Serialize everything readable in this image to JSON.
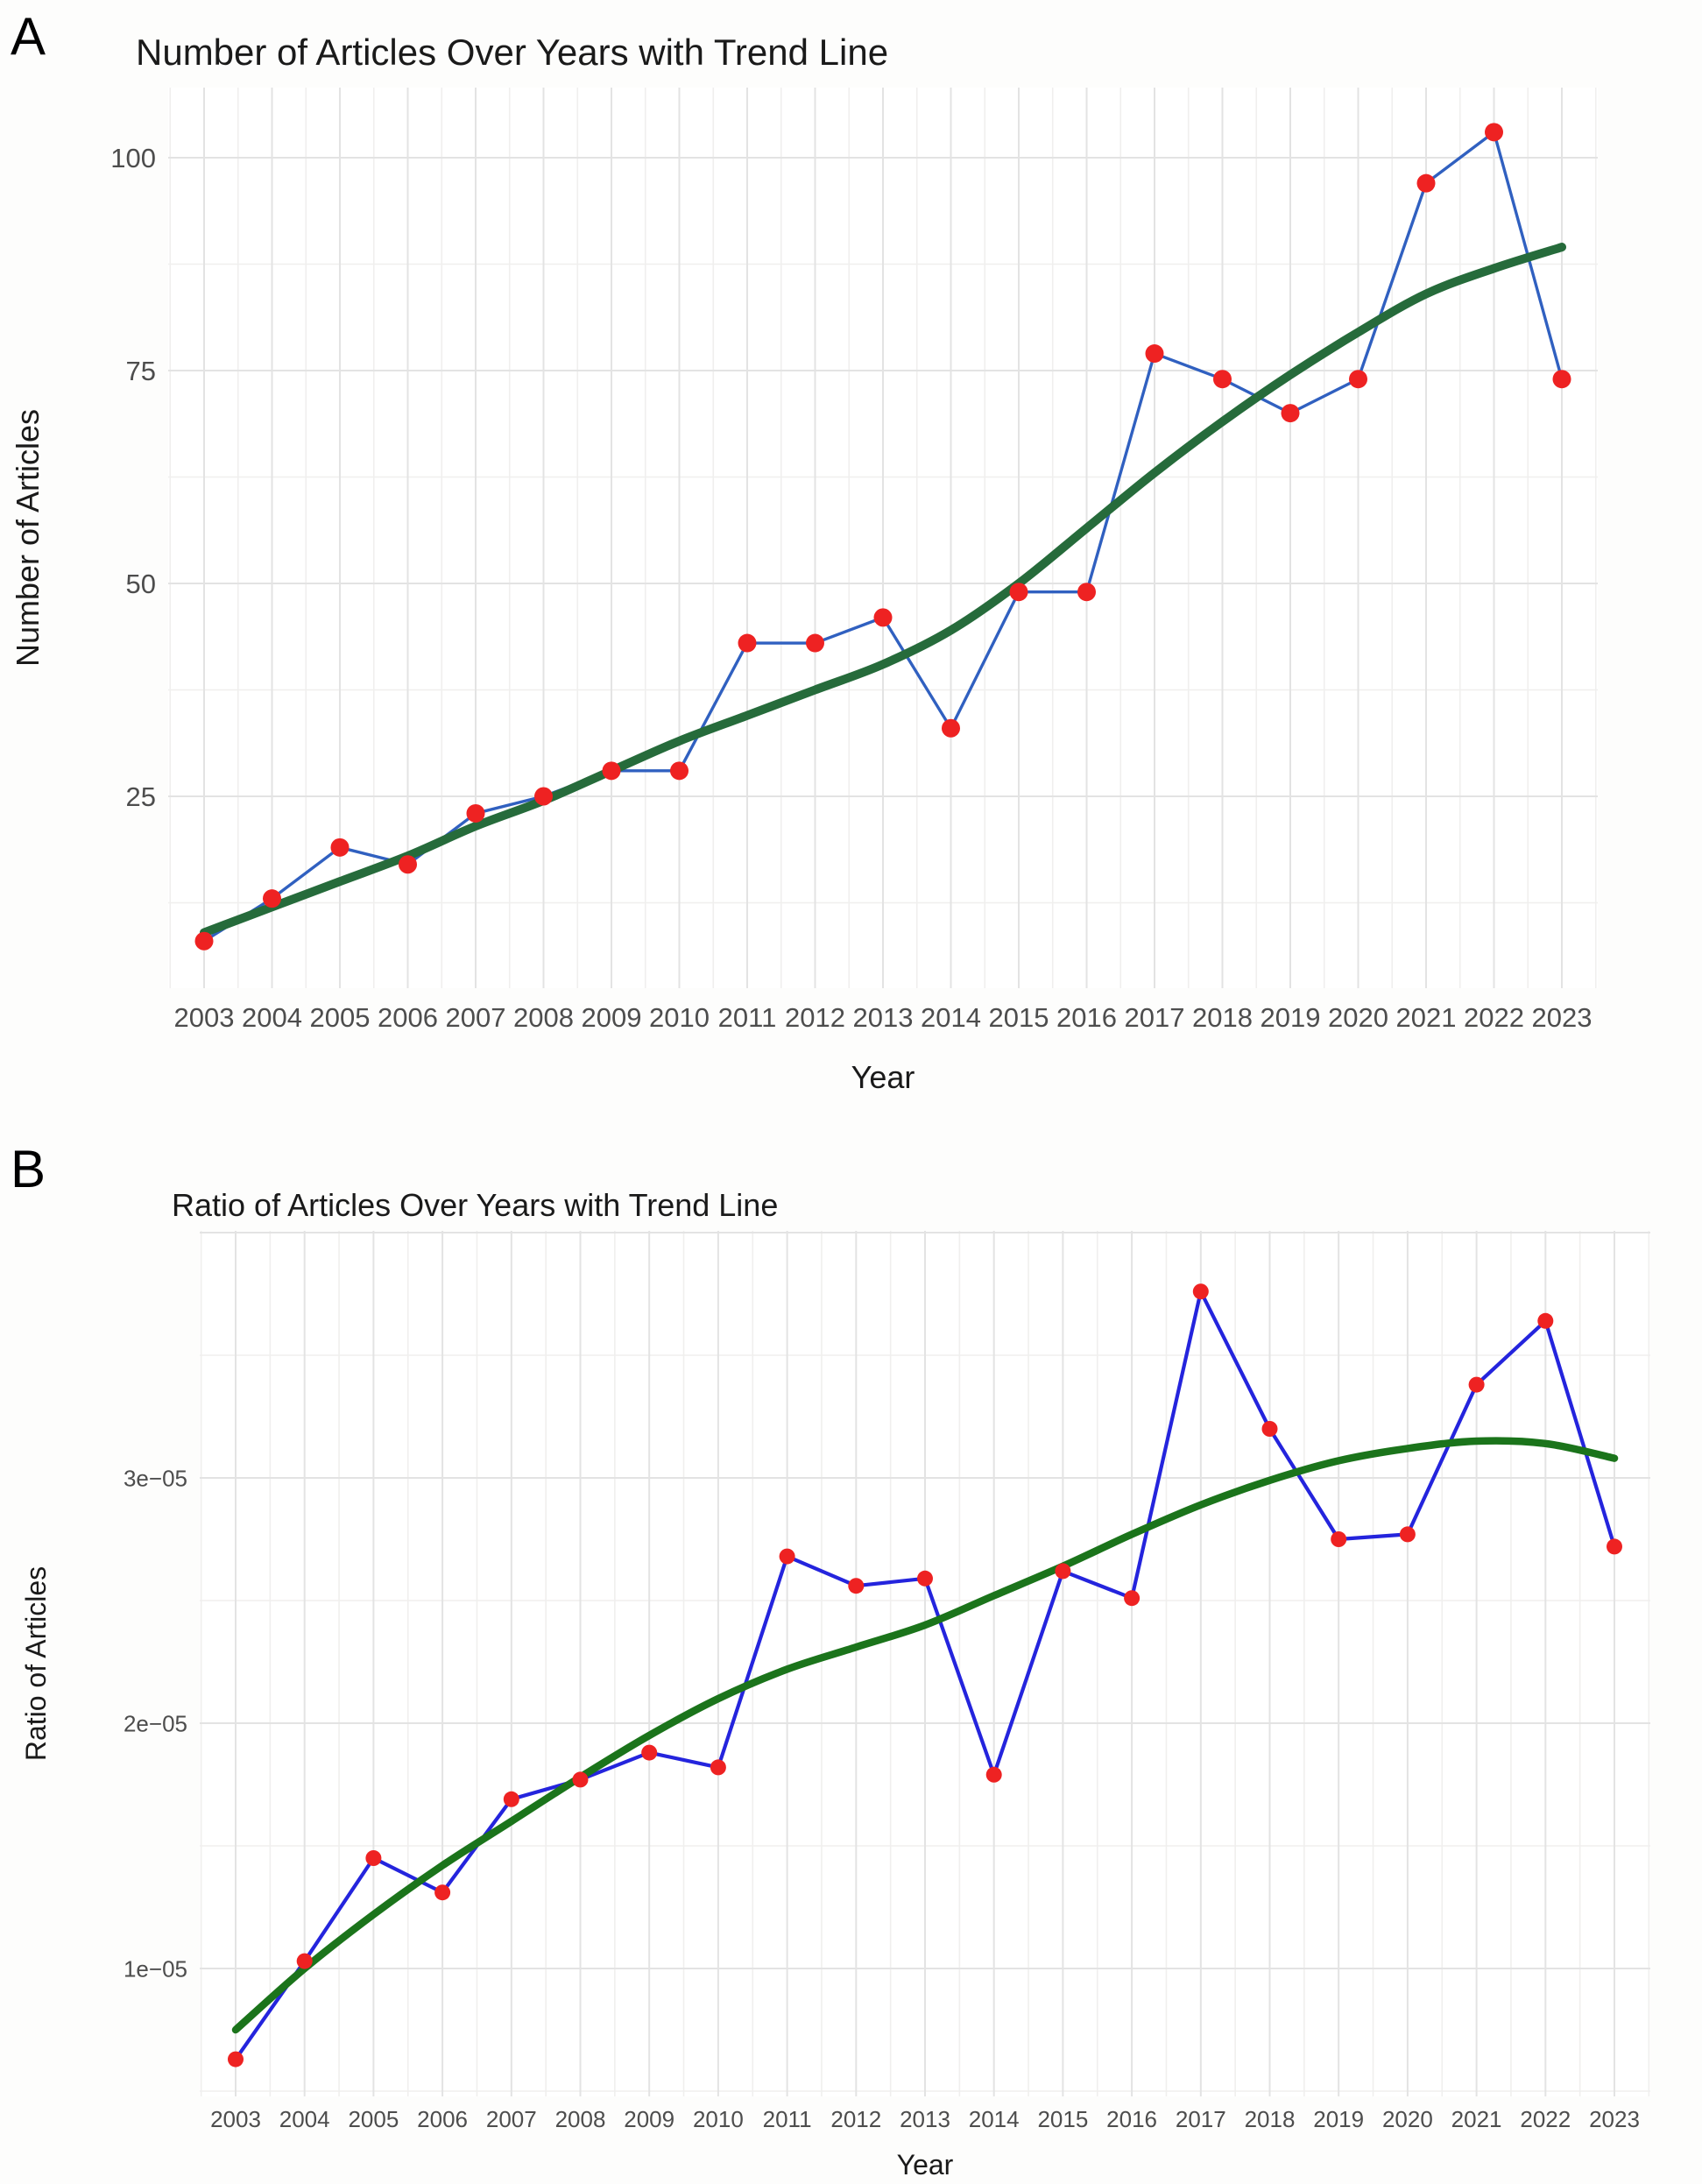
{
  "figure": {
    "background_color": "#fdfdfc",
    "panel_background_color": "#ffffff",
    "grid_major_color": "#e3e3e3",
    "grid_minor_color": "#f0efee",
    "tick_label_color": "#4d4d4d",
    "panels": {
      "a_label": "A",
      "b_label": "B"
    }
  },
  "chart_data": [
    {
      "id": "panel_a",
      "type": "line",
      "title": "Number of Articles Over Years with Trend Line",
      "xlabel": "Year",
      "ylabel": "Number of Articles",
      "x": [
        2003,
        2004,
        2005,
        2006,
        2007,
        2008,
        2009,
        2010,
        2011,
        2012,
        2013,
        2014,
        2015,
        2016,
        2017,
        2018,
        2019,
        2020,
        2021,
        2022,
        2023
      ],
      "series": [
        {
          "name": "Number of Articles",
          "style": "points-and-line",
          "line_color": "#3060c0",
          "point_color": "#ee2222",
          "values": [
            8,
            13,
            19,
            17,
            23,
            25,
            28,
            28,
            43,
            43,
            46,
            33,
            49,
            49,
            77,
            74,
            70,
            74,
            97,
            103,
            74
          ]
        },
        {
          "name": "Loess Trend",
          "style": "smooth-line",
          "line_color": "#266b3b",
          "values": [
            9,
            12,
            15,
            18,
            21.5,
            24.5,
            28,
            31.5,
            34.5,
            37.5,
            40.5,
            44.5,
            50,
            56.5,
            63,
            69,
            74.5,
            79.5,
            84,
            87,
            89.5
          ]
        }
      ],
      "ylim": [
        2.5,
        108
      ],
      "xlim": [
        2002.5,
        2023.5
      ],
      "y_ticks": [
        25,
        50,
        75,
        100
      ],
      "y_tick_labels": [
        "25",
        "50",
        "75",
        "100"
      ],
      "y_grid_major": [
        25,
        50,
        75,
        100
      ],
      "y_grid_minor": [
        12.5,
        37.5,
        62.5,
        87.5
      ],
      "grid": "on",
      "legend": "none"
    },
    {
      "id": "panel_b",
      "type": "line",
      "title": "Ratio of Articles Over Years with Trend Line",
      "xlabel": "Year",
      "ylabel": "Ratio of Articles",
      "x": [
        2003,
        2004,
        2005,
        2006,
        2007,
        2008,
        2009,
        2010,
        2011,
        2012,
        2013,
        2014,
        2015,
        2016,
        2017,
        2018,
        2019,
        2020,
        2021,
        2022,
        2023
      ],
      "series": [
        {
          "name": "Ratio of Articles",
          "style": "points-and-line",
          "line_color": "#2424dd",
          "point_color": "#ee2222",
          "values": [
            6.3e-06,
            1.03e-05,
            1.45e-05,
            1.31e-05,
            1.69e-05,
            1.77e-05,
            1.88e-05,
            1.82e-05,
            2.68e-05,
            2.56e-05,
            2.59e-05,
            1.79e-05,
            2.62e-05,
            2.51e-05,
            3.76e-05,
            3.2e-05,
            2.75e-05,
            2.77e-05,
            3.38e-05,
            3.64e-05,
            2.72e-05
          ]
        },
        {
          "name": "Loess Trend",
          "style": "smooth-line",
          "line_color": "#1b741b",
          "values": [
            7.5e-06,
            1e-05,
            1.22e-05,
            1.42e-05,
            1.6e-05,
            1.78e-05,
            1.95e-05,
            2.1e-05,
            2.22e-05,
            2.31e-05,
            2.4e-05,
            2.52e-05,
            2.64e-05,
            2.77e-05,
            2.89e-05,
            2.99e-05,
            3.07e-05,
            3.12e-05,
            3.15e-05,
            3.14e-05,
            3.08e-05
          ]
        }
      ],
      "ylim": [
        4.8e-06,
        4e-05
      ],
      "xlim": [
        2002.5,
        2023.5
      ],
      "y_ticks": [
        1e-05,
        2e-05,
        3e-05
      ],
      "y_tick_labels": [
        "1e−05",
        "2e−05",
        "3e−05"
      ],
      "y_grid_major": [
        1e-05,
        2e-05,
        3e-05,
        4e-05
      ],
      "y_grid_minor": [
        5e-06,
        1.5e-05,
        2.5e-05,
        3.5e-05
      ],
      "grid": "on",
      "legend": "none"
    }
  ]
}
